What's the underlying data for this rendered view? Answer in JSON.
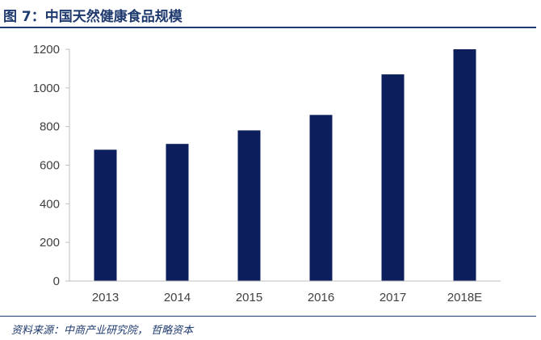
{
  "figure": {
    "title": "图 7：中国天然健康食品规模",
    "source": "资料来源：中商产业研究院， 哲略资本"
  },
  "chart_data": {
    "type": "bar",
    "categories": [
      "2013",
      "2014",
      "2015",
      "2016",
      "2017",
      "2018E"
    ],
    "values": [
      680,
      710,
      780,
      860,
      1070,
      1200
    ],
    "title": "",
    "xlabel": "",
    "ylabel": "",
    "ylim": [
      0,
      1200
    ],
    "yticks": [
      0,
      200,
      400,
      600,
      800,
      1000,
      1200
    ],
    "grid": false,
    "legend": "none",
    "bar_color": "#0c1f5c",
    "axis_color": "#bfbfbf"
  }
}
